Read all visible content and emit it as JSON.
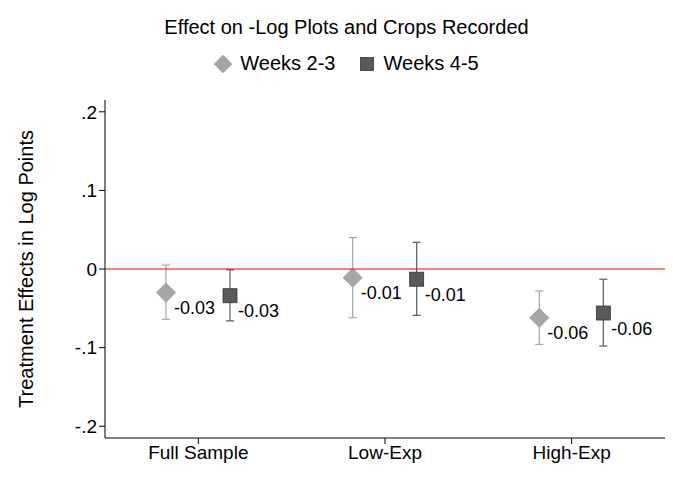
{
  "chart_data": {
    "type": "point",
    "title": "Effect on -Log Plots and Crops Recorded",
    "y_label": "Treatment Effects in Log Points",
    "categories": [
      "Full Sample",
      "Low-Exp",
      "High-Exp"
    ],
    "series": [
      {
        "name": "Weeks 2-3",
        "color": "#a6a6a6",
        "marker": "diamond",
        "values": [
          -0.03,
          -0.011,
          -0.062
        ],
        "value_labels": [
          "-0.03",
          "-0.01",
          "-0.06"
        ],
        "ci_low": [
          -0.064,
          -0.062,
          -0.096
        ],
        "ci_high": [
          0.005,
          0.04,
          -0.028
        ]
      },
      {
        "name": "Weeks 4-5",
        "color": "#5a5a5a",
        "marker": "square",
        "values": [
          -0.034,
          -0.013,
          -0.056
        ],
        "value_labels": [
          "-0.03",
          "-0.01",
          "-0.06"
        ],
        "ci_low": [
          -0.066,
          -0.059,
          -0.098
        ],
        "ci_high": [
          -0.001,
          0.034,
          -0.013
        ]
      }
    ],
    "ylim": [
      -0.215,
      0.215
    ],
    "yticks": [
      {
        "value": -0.2,
        "label": "-.2"
      },
      {
        "value": -0.1,
        "label": "-.1"
      },
      0,
      {
        "value": 0.1,
        "label": ".1"
      },
      {
        "value": 0.2,
        "label": ".2"
      }
    ],
    "reference_line": {
      "y": 0,
      "color": "#ff0000"
    },
    "legend": "top",
    "grid": false
  }
}
